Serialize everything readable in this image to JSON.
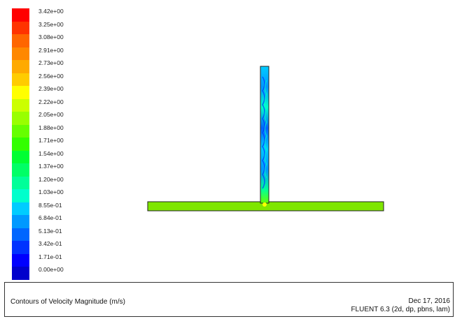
{
  "colorbar": {
    "labels": [
      "3.42e+00",
      "3.25e+00",
      "3.08e+00",
      "2.91e+00",
      "2.73e+00",
      "2.56e+00",
      "2.39e+00",
      "2.22e+00",
      "2.05e+00",
      "1.88e+00",
      "1.71e+00",
      "1.54e+00",
      "1.37e+00",
      "1.20e+00",
      "1.03e+00",
      "8.55e-01",
      "6.84e-01",
      "5.13e-01",
      "3.42e-01",
      "1.71e-01",
      "0.00e+00"
    ],
    "colors": [
      "#ff0000",
      "#ff3300",
      "#ff6600",
      "#ff8800",
      "#ffaa00",
      "#ffcc00",
      "#ffff00",
      "#ccff00",
      "#99ff00",
      "#66ff00",
      "#33ff00",
      "#00ff33",
      "#00ff66",
      "#00ff99",
      "#00ffcc",
      "#00ccff",
      "#0099ff",
      "#0066ff",
      "#0033ff",
      "#0000ff",
      "#0000cc"
    ]
  },
  "footer": {
    "title": "Contours of Velocity Magnitude (m/s)",
    "date": "Dec 17, 2016",
    "version": "FLUENT 6.3 (2d, dp, pbns, lam)"
  }
}
